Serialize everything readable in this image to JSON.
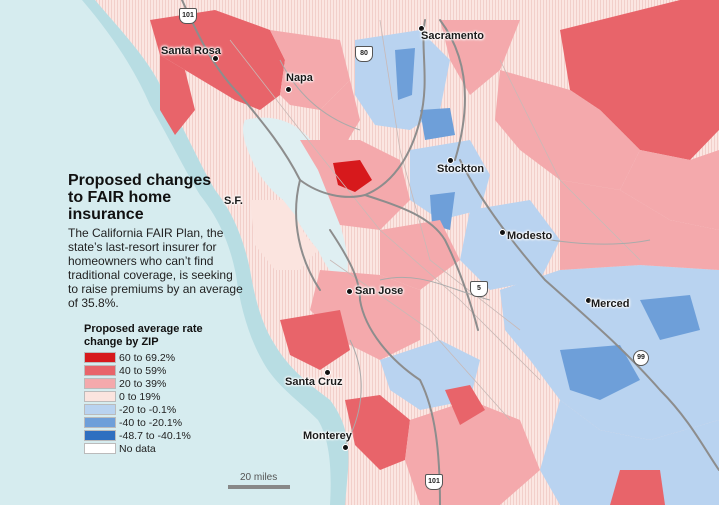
{
  "title": "Proposed changes to FAIR home insurance",
  "description": "The California FAIR Plan, the state’s last-resort insurer for homeowners who can’t find traditional coverage, is seeking to raise premiums by an average of 35.8%.",
  "legend": {
    "title": "Proposed average rate change by ZIP",
    "items": [
      {
        "label": "60 to 69.2%",
        "color": "#d7191c"
      },
      {
        "label": "40 to 59%",
        "color": "#e8646a"
      },
      {
        "label": "20 to 39%",
        "color": "#f4a9ac"
      },
      {
        "label": "0 to 19%",
        "color": "#fbe4df"
      },
      {
        "label": "-20 to -0.1%",
        "color": "#b9d3f0"
      },
      {
        "label": "-40 to -20.1%",
        "color": "#6e9fd9"
      },
      {
        "label": "-48.7 to -40.1%",
        "color": "#2f6fc0"
      },
      {
        "label": "No data",
        "color": "#ffffff"
      }
    ]
  },
  "cities": {
    "santa_rosa": "Santa Rosa",
    "napa": "Napa",
    "sacramento": "Sacramento",
    "stockton": "Stockton",
    "sf": "S.F.",
    "modesto": "Modesto",
    "san_jose": "San Jose",
    "merced": "Merced",
    "santa_cruz": "Santa Cruz",
    "monterey": "Monterey"
  },
  "highways": {
    "h101": "101",
    "h80": "80",
    "h5": "5",
    "h99": "99",
    "h101_south": "101"
  },
  "scale": {
    "label": "20 miles"
  },
  "colors": {
    "ocean": "#d6ecef",
    "ocean_shallow": "#b8dde3",
    "bay": "#dfeff2"
  }
}
